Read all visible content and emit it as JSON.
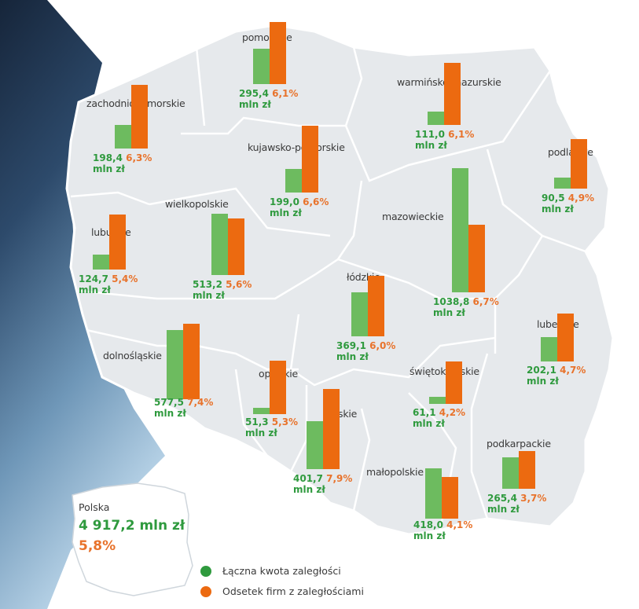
{
  "colors": {
    "amount": "#2f9a3e",
    "amount_bar": "#6dbb5f",
    "percent": "#e8732c",
    "percent_bar": "#ec6a10",
    "map_fill": "#e6e9ec",
    "border": "#ffffff"
  },
  "scale": {
    "amount_max": 1038.8,
    "percent_max": 7.9
  },
  "regions": [
    {
      "id": "pomorskie",
      "name": "pomorskie",
      "amount": "295,4",
      "amount_num": 295.4,
      "percent": "6,1%",
      "percent_num": 6.1,
      "unit": "mln zł"
    },
    {
      "id": "warminsko-mazurskie",
      "name": "warmińsko-mazurskie",
      "amount": "111,0",
      "amount_num": 111.0,
      "percent": "6,1%",
      "percent_num": 6.1,
      "unit": "mln zł"
    },
    {
      "id": "zachodniopomorskie",
      "name": "zachodniopomorskie",
      "amount": "198,4",
      "amount_num": 198.4,
      "percent": "6,3%",
      "percent_num": 6.3,
      "unit": "mln zł"
    },
    {
      "id": "kujawsko-pomorskie",
      "name": "kujawsko-pomorskie",
      "amount": "199,0",
      "amount_num": 199.0,
      "percent": "6,6%",
      "percent_num": 6.6,
      "unit": "mln zł"
    },
    {
      "id": "podlaskie",
      "name": "podlaskie",
      "amount": "90,5",
      "amount_num": 90.5,
      "percent": "4,9%",
      "percent_num": 4.9,
      "unit": "mln zł"
    },
    {
      "id": "wielkopolskie",
      "name": "wielkopolskie",
      "amount": "513,2",
      "amount_num": 513.2,
      "percent": "5,6%",
      "percent_num": 5.6,
      "unit": "mln zł"
    },
    {
      "id": "mazowieckie",
      "name": "mazowieckie",
      "amount": "1038,8",
      "amount_num": 1038.8,
      "percent": "6,7%",
      "percent_num": 6.7,
      "unit": "mln zł"
    },
    {
      "id": "lubuskie",
      "name": "lubuskie",
      "amount": "124,7",
      "amount_num": 124.7,
      "percent": "5,4%",
      "percent_num": 5.4,
      "unit": "mln zł"
    },
    {
      "id": "lodzkie",
      "name": "łódzkie",
      "amount": "369,1",
      "amount_num": 369.1,
      "percent": "6,0%",
      "percent_num": 6.0,
      "unit": "mln zł"
    },
    {
      "id": "lubelskie",
      "name": "lubelskie",
      "amount": "202,1",
      "amount_num": 202.1,
      "percent": "4,7%",
      "percent_num": 4.7,
      "unit": "mln zł"
    },
    {
      "id": "dolnoslaskie",
      "name": "dolnośląskie",
      "amount": "577,5",
      "amount_num": 577.5,
      "percent": "7,4%",
      "percent_num": 7.4,
      "unit": "mln zł"
    },
    {
      "id": "opolskie",
      "name": "opolskie",
      "amount": "51,3",
      "amount_num": 51.3,
      "percent": "5,3%",
      "percent_num": 5.3,
      "unit": "mln zł"
    },
    {
      "id": "swietokrzyskie",
      "name": "świętokrzyskie",
      "amount": "61,1",
      "amount_num": 61.1,
      "percent": "4,2%",
      "percent_num": 4.2,
      "unit": "mln zł"
    },
    {
      "id": "slaskie",
      "name": "śląskie",
      "amount": "401,7",
      "amount_num": 401.7,
      "percent": "7,9%",
      "percent_num": 7.9,
      "unit": "mln zł"
    },
    {
      "id": "malopolskie",
      "name": "małopolskie",
      "amount": "418,0",
      "amount_num": 418.0,
      "percent": "4,1%",
      "percent_num": 4.1,
      "unit": "mln zł"
    },
    {
      "id": "podkarpackie",
      "name": "podkarpackie",
      "amount": "265,4",
      "amount_num": 265.4,
      "percent": "3,7%",
      "percent_num": 3.7,
      "unit": "mln zł"
    }
  ],
  "total": {
    "label": "Polska",
    "amount": "4 917,2 mln zł",
    "percent": "5,8%"
  },
  "legend": [
    {
      "label": "Łączna kwota zaległości",
      "color": "#2f9a3e"
    },
    {
      "label": "Odsetek firm z zaległościami",
      "color": "#ec6a10"
    }
  ]
}
